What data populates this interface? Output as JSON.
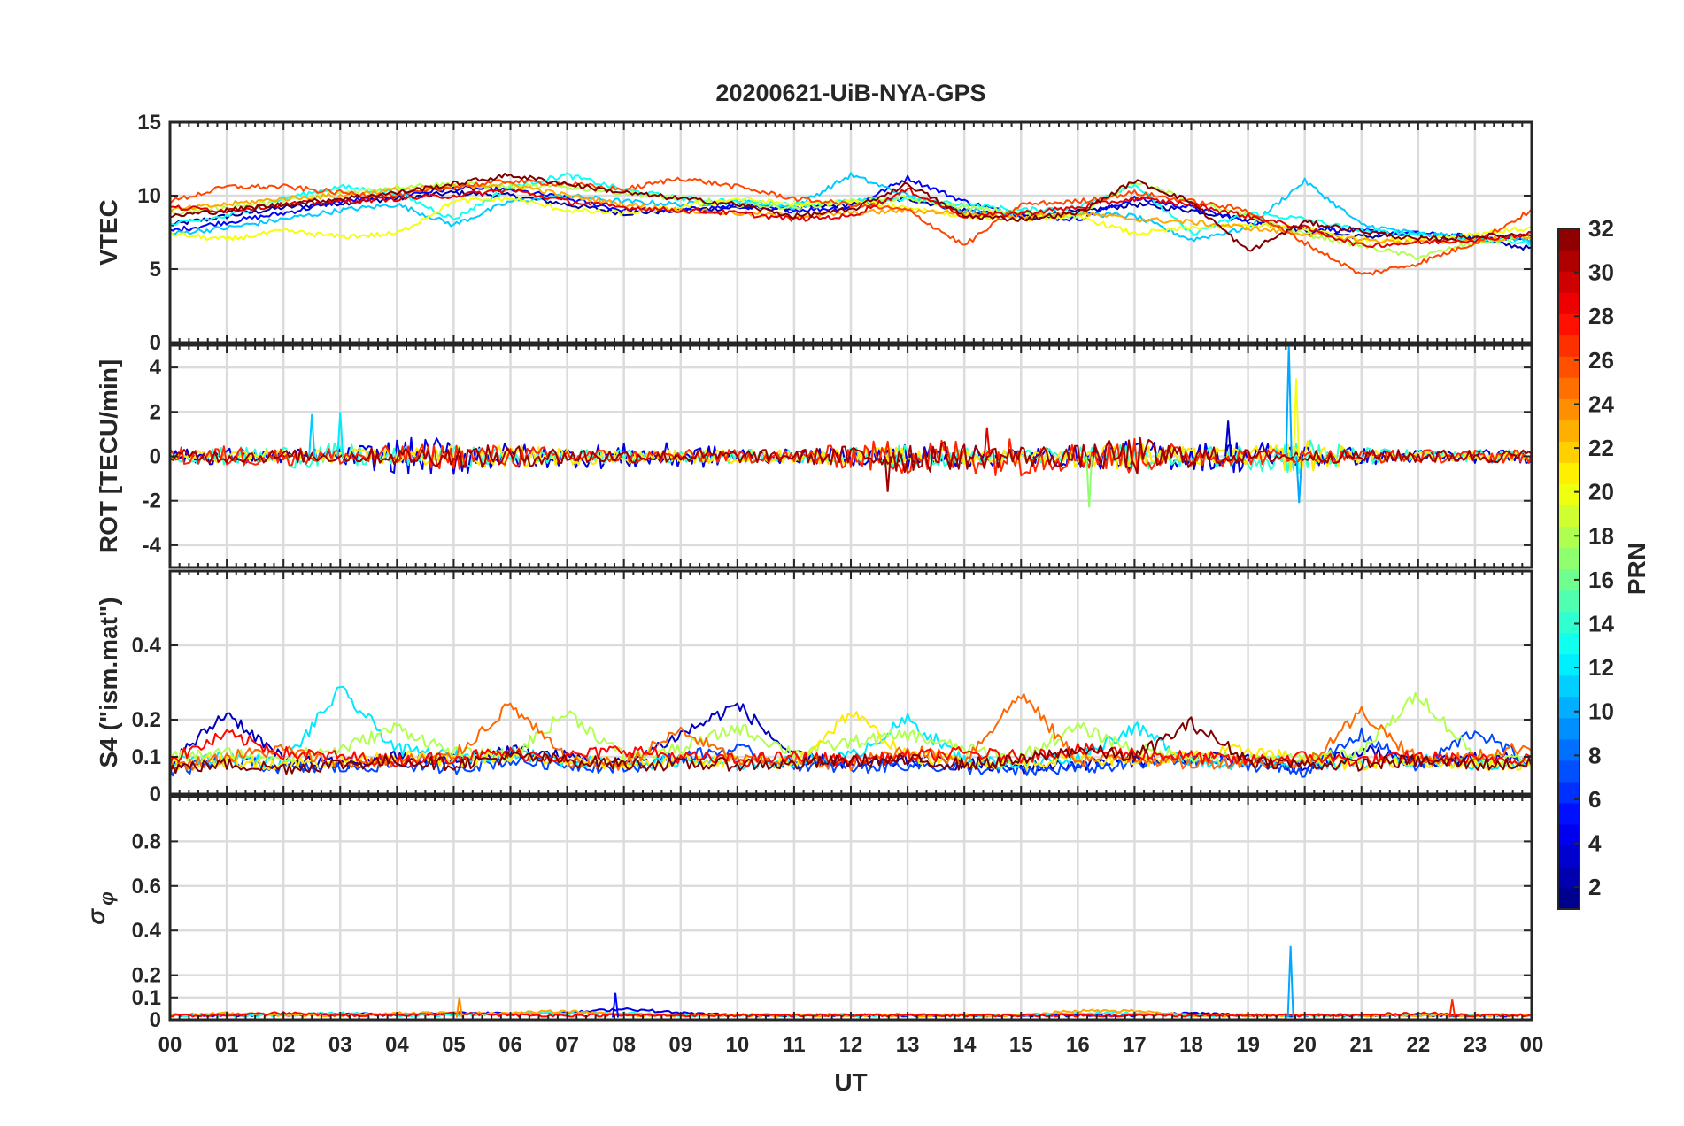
{
  "figure": {
    "title": "20200621-UiB-NYA-GPS"
  },
  "x_axis": {
    "label": "UT",
    "tick_labels": [
      "00",
      "01",
      "02",
      "03",
      "04",
      "05",
      "06",
      "07",
      "08",
      "09",
      "10",
      "11",
      "12",
      "13",
      "14",
      "15",
      "16",
      "17",
      "18",
      "19",
      "20",
      "21",
      "22",
      "23",
      "00"
    ],
    "range_hours": [
      0,
      24
    ]
  },
  "colorbar": {
    "label": "PRN",
    "range": [
      1,
      32
    ],
    "tick_labels": [
      "2",
      "4",
      "6",
      "8",
      "10",
      "12",
      "14",
      "16",
      "18",
      "20",
      "22",
      "24",
      "26",
      "28",
      "30",
      "32"
    ],
    "colormap": "jet",
    "levels": 32
  },
  "chart_data": [
    {
      "type": "line",
      "panel": "vtec",
      "ylabel": "VTEC",
      "ylim": [
        0,
        15
      ],
      "yticks": [
        0,
        5,
        10,
        15
      ],
      "ytick_labels": [
        "0",
        "5",
        "10",
        "15"
      ],
      "grid": true,
      "x": [
        0,
        1,
        2,
        3,
        4,
        5,
        6,
        7,
        8,
        9,
        10,
        11,
        12,
        13,
        14,
        15,
        16,
        17,
        18,
        19,
        20,
        21,
        22,
        23,
        24
      ],
      "series": [
        {
          "name": "PRN 2",
          "prn": 2,
          "values": [
            8.0,
            8.6,
            9.2,
            9.5,
            9.8,
            10.2,
            10.0,
            9.4,
            8.8,
            9.0,
            9.2,
            9.1,
            9.4,
            9.8,
            9.0,
            8.6,
            8.9,
            9.4,
            9.0,
            8.4,
            7.6,
            7.2,
            7.4,
            7.0,
            6.4
          ]
        },
        {
          "name": "PRN 5",
          "prn": 5,
          "values": [
            7.6,
            8.2,
            8.8,
            9.6,
            10.0,
            10.5,
            10.4,
            9.8,
            9.0,
            9.0,
            9.3,
            9.0,
            9.2,
            11.2,
            9.6,
            8.6,
            8.4,
            9.8,
            9.2,
            8.2,
            7.8,
            7.6,
            7.4,
            7.2,
            7.0
          ]
        },
        {
          "name": "PRN 11",
          "prn": 11,
          "values": [
            7.4,
            7.8,
            8.4,
            9.0,
            9.4,
            8.0,
            9.6,
            10.0,
            9.6,
            9.4,
            9.6,
            9.2,
            11.4,
            10.0,
            9.0,
            8.8,
            8.8,
            8.6,
            7.0,
            7.8,
            11.0,
            8.0,
            7.4,
            7.2,
            7.0
          ]
        },
        {
          "name": "PRN 13",
          "prn": 13,
          "values": [
            8.0,
            8.6,
            9.8,
            10.6,
            10.2,
            8.4,
            10.6,
            11.4,
            10.4,
            9.8,
            9.6,
            9.4,
            9.6,
            9.8,
            9.4,
            9.0,
            9.2,
            10.8,
            7.4,
            8.8,
            8.4,
            7.6,
            7.4,
            7.0,
            6.8
          ]
        },
        {
          "name": "PRN 18",
          "prn": 18,
          "values": [
            8.8,
            9.2,
            9.6,
            10.2,
            10.6,
            10.8,
            10.6,
            10.6,
            10.2,
            9.8,
            9.4,
            9.2,
            9.6,
            9.8,
            9.2,
            8.8,
            8.6,
            11.0,
            9.6,
            8.6,
            7.4,
            6.6,
            5.8,
            6.8,
            7.2
          ]
        },
        {
          "name": "PRN 20",
          "prn": 20,
          "values": [
            7.4,
            7.0,
            7.6,
            7.2,
            7.4,
            9.6,
            9.8,
            9.0,
            8.8,
            9.2,
            9.8,
            9.4,
            9.6,
            9.2,
            8.6,
            8.4,
            8.6,
            7.4,
            7.8,
            8.0,
            7.8,
            7.0,
            7.0,
            7.4,
            7.8
          ]
        },
        {
          "name": "PRN 23",
          "prn": 23,
          "values": [
            9.0,
            9.4,
            9.8,
            10.0,
            10.4,
            10.6,
            10.8,
            10.0,
            9.4,
            9.0,
            8.8,
            8.6,
            8.8,
            9.0,
            8.8,
            8.6,
            8.8,
            8.4,
            8.2,
            7.8,
            7.4,
            7.0,
            6.8,
            7.0,
            7.2
          ]
        },
        {
          "name": "PRN 26",
          "prn": 26,
          "values": [
            9.6,
            10.6,
            10.6,
            10.2,
            10.0,
            10.6,
            11.0,
            10.8,
            10.4,
            11.2,
            10.6,
            9.8,
            9.4,
            9.0,
            6.6,
            9.4,
            9.6,
            10.2,
            9.6,
            9.0,
            6.8,
            4.6,
            5.4,
            6.8,
            9.0
          ]
        },
        {
          "name": "PRN 29",
          "prn": 29,
          "values": [
            9.2,
            9.0,
            9.4,
            9.6,
            9.8,
            10.0,
            10.4,
            9.6,
            9.2,
            9.0,
            8.8,
            8.4,
            8.6,
            10.4,
            8.6,
            8.8,
            9.2,
            9.8,
            9.4,
            8.6,
            7.8,
            6.6,
            6.8,
            7.0,
            7.4
          ]
        },
        {
          "name": "PRN 32",
          "prn": 32,
          "values": [
            8.6,
            9.0,
            9.4,
            9.8,
            10.2,
            10.8,
            11.4,
            10.8,
            10.2,
            9.8,
            9.4,
            8.6,
            9.0,
            10.8,
            8.6,
            8.4,
            8.8,
            11.0,
            9.6,
            6.2,
            8.2,
            7.6,
            7.0,
            7.2,
            7.4
          ]
        }
      ]
    },
    {
      "type": "line",
      "panel": "rot",
      "ylabel": "ROT [TECU/min]",
      "ylim": [
        -5,
        5
      ],
      "yticks": [
        -4,
        -2,
        0,
        2,
        4
      ],
      "ytick_labels": [
        "-4",
        "-2",
        "0",
        "2",
        "4"
      ],
      "grid": true,
      "x": [
        0,
        1,
        2,
        3,
        4,
        5,
        6,
        7,
        8,
        9,
        10,
        11,
        12,
        13,
        14,
        15,
        16,
        17,
        18,
        19,
        20,
        21,
        22,
        23,
        24
      ],
      "spikes": [
        {
          "name": "PRN 10 spike",
          "prn": 10,
          "x": 19.72,
          "y": 5.0
        },
        {
          "name": "PRN 10 dip",
          "prn": 10,
          "x": 19.9,
          "y": -2.1
        },
        {
          "name": "PRN 20 spike",
          "prn": 20,
          "x": 19.85,
          "y": 3.5
        },
        {
          "name": "PRN 12 spike",
          "prn": 12,
          "x": 3.0,
          "y": 2.0
        },
        {
          "name": "PRN 11 spike",
          "prn": 11,
          "x": 2.5,
          "y": 1.9
        },
        {
          "name": "PRN 3 spike",
          "prn": 3,
          "x": 18.65,
          "y": 1.6
        },
        {
          "name": "PRN 17 dip",
          "prn": 17,
          "x": 16.2,
          "y": -2.3
        },
        {
          "name": "PRN 31 dip",
          "prn": 31,
          "x": 12.65,
          "y": -1.6
        },
        {
          "name": "PRN 29 spike",
          "prn": 29,
          "x": 14.4,
          "y": 1.3
        }
      ],
      "series": [
        {
          "name": "PRN 4 ROT",
          "prn": 4,
          "amplitudes": [
            0.3,
            0.4,
            0.3,
            0.4,
            0.8,
            0.9,
            0.6,
            0.5,
            0.6,
            0.6,
            0.4,
            0.3,
            0.4,
            0.6,
            0.5,
            0.4,
            0.5,
            0.7,
            0.6,
            0.8,
            0.5,
            0.4,
            0.3,
            0.3,
            0.3
          ]
        },
        {
          "name": "PRN 14 ROT",
          "prn": 14,
          "amplitudes": [
            0.3,
            0.4,
            0.5,
            0.6,
            0.4,
            0.5,
            0.4,
            0.3,
            0.3,
            0.3,
            0.3,
            0.3,
            0.4,
            0.5,
            0.4,
            0.3,
            0.4,
            0.6,
            0.4,
            0.6,
            0.9,
            0.4,
            0.3,
            0.3,
            0.3
          ]
        },
        {
          "name": "PRN 21 ROT",
          "prn": 21,
          "amplitudes": [
            0.2,
            0.3,
            0.3,
            0.3,
            0.4,
            0.5,
            0.5,
            0.4,
            0.3,
            0.3,
            0.3,
            0.3,
            0.4,
            0.4,
            0.4,
            0.3,
            0.5,
            0.6,
            0.4,
            0.4,
            0.8,
            0.3,
            0.2,
            0.2,
            0.2
          ]
        },
        {
          "name": "PRN 27 ROT",
          "prn": 27,
          "amplitudes": [
            0.4,
            0.5,
            0.4,
            0.4,
            0.5,
            0.6,
            0.5,
            0.4,
            0.3,
            0.3,
            0.3,
            0.3,
            0.6,
            0.9,
            0.8,
            0.9,
            0.6,
            0.8,
            0.5,
            0.4,
            0.3,
            0.3,
            0.3,
            0.3,
            0.3
          ]
        },
        {
          "name": "PRN 31 ROT",
          "prn": 31,
          "amplitudes": [
            0.3,
            0.3,
            0.3,
            0.3,
            0.4,
            0.5,
            0.5,
            0.4,
            0.3,
            0.3,
            0.3,
            0.3,
            0.5,
            0.8,
            0.6,
            0.5,
            0.5,
            0.9,
            0.5,
            0.3,
            0.3,
            0.3,
            0.3,
            0.3,
            0.3
          ]
        }
      ]
    },
    {
      "type": "line",
      "panel": "s4",
      "ylabel": "S4 (\"ism.mat\")",
      "ylim": [
        0,
        0.6
      ],
      "yticks": [
        0,
        0.1,
        0.2,
        0.4
      ],
      "ytick_labels": [
        "0",
        "0.1",
        "0.2",
        "0.4"
      ],
      "grid": true,
      "x": [
        0,
        1,
        2,
        3,
        4,
        5,
        6,
        7,
        8,
        9,
        10,
        11,
        12,
        13,
        14,
        15,
        16,
        17,
        18,
        19,
        20,
        21,
        22,
        23,
        24
      ],
      "series": [
        {
          "name": "PRN 3 S4",
          "prn": 3,
          "values": [
            0.08,
            0.22,
            0.09,
            0.08,
            0.1,
            0.09,
            0.12,
            0.1,
            0.08,
            0.16,
            0.24,
            0.1,
            0.08,
            0.09,
            0.08,
            0.07,
            0.08,
            0.09,
            0.1,
            0.09,
            0.07,
            0.12,
            0.08,
            0.1,
            0.09
          ]
        },
        {
          "name": "PRN 7 S4",
          "prn": 7,
          "values": [
            0.06,
            0.09,
            0.07,
            0.07,
            0.08,
            0.07,
            0.09,
            0.08,
            0.07,
            0.1,
            0.12,
            0.08,
            0.07,
            0.08,
            0.07,
            0.06,
            0.07,
            0.08,
            0.09,
            0.08,
            0.06,
            0.16,
            0.07,
            0.17,
            0.08
          ]
        },
        {
          "name": "PRN 12 S4",
          "prn": 12,
          "values": [
            0.09,
            0.1,
            0.08,
            0.28,
            0.12,
            0.1,
            0.11,
            0.09,
            0.08,
            0.09,
            0.08,
            0.09,
            0.1,
            0.2,
            0.09,
            0.08,
            0.1,
            0.18,
            0.09,
            0.08,
            0.09,
            0.08,
            0.09,
            0.08,
            0.08
          ]
        },
        {
          "name": "PRN 18 S4",
          "prn": 18,
          "values": [
            0.1,
            0.11,
            0.1,
            0.12,
            0.18,
            0.11,
            0.1,
            0.22,
            0.1,
            0.12,
            0.18,
            0.11,
            0.14,
            0.16,
            0.12,
            0.1,
            0.18,
            0.12,
            0.1,
            0.09,
            0.1,
            0.11,
            0.27,
            0.1,
            0.09
          ]
        },
        {
          "name": "PRN 21 S4",
          "prn": 21,
          "values": [
            0.08,
            0.09,
            0.08,
            0.09,
            0.1,
            0.09,
            0.1,
            0.09,
            0.08,
            0.09,
            0.09,
            0.08,
            0.22,
            0.1,
            0.09,
            0.08,
            0.1,
            0.09,
            0.1,
            0.12,
            0.09,
            0.08,
            0.09,
            0.08,
            0.08
          ]
        },
        {
          "name": "PRN 25 S4",
          "prn": 25,
          "values": [
            0.07,
            0.1,
            0.12,
            0.08,
            0.09,
            0.1,
            0.24,
            0.09,
            0.08,
            0.17,
            0.09,
            0.09,
            0.08,
            0.12,
            0.09,
            0.27,
            0.09,
            0.1,
            0.08,
            0.09,
            0.08,
            0.22,
            0.09,
            0.1,
            0.13
          ]
        },
        {
          "name": "PRN 28 S4",
          "prn": 28,
          "values": [
            0.09,
            0.16,
            0.11,
            0.1,
            0.09,
            0.1,
            0.11,
            0.1,
            0.12,
            0.1,
            0.09,
            0.1,
            0.09,
            0.1,
            0.11,
            0.1,
            0.12,
            0.11,
            0.1,
            0.09,
            0.1,
            0.09,
            0.1,
            0.09,
            0.1
          ]
        },
        {
          "name": "PRN 32 S4",
          "prn": 32,
          "values": [
            0.07,
            0.08,
            0.07,
            0.08,
            0.09,
            0.08,
            0.1,
            0.09,
            0.08,
            0.08,
            0.08,
            0.08,
            0.09,
            0.09,
            0.08,
            0.09,
            0.12,
            0.1,
            0.19,
            0.09,
            0.08,
            0.08,
            0.09,
            0.08,
            0.08
          ]
        }
      ]
    },
    {
      "type": "line",
      "panel": "sigma_phi",
      "ylabel": "σ_φ",
      "ylabel_main": "σ",
      "ylabel_sub": "φ",
      "ylim": [
        0,
        1
      ],
      "yticks": [
        0,
        0.1,
        0.2,
        0.4,
        0.6,
        0.8
      ],
      "ytick_labels": [
        "0",
        "0.1",
        "0.2",
        "0.4",
        "0.6",
        "0.8"
      ],
      "grid": true,
      "x": [
        0,
        1,
        2,
        3,
        4,
        5,
        6,
        7,
        8,
        9,
        10,
        11,
        12,
        13,
        14,
        15,
        16,
        17,
        18,
        19,
        20,
        21,
        22,
        23,
        24
      ],
      "spikes": [
        {
          "name": "PRN 10 spike",
          "prn": 10,
          "x": 19.75,
          "y": 0.33
        },
        {
          "name": "PRN 5 spike",
          "prn": 5,
          "x": 7.85,
          "y": 0.12
        },
        {
          "name": "PRN 24 spike",
          "prn": 24,
          "x": 5.1,
          "y": 0.1
        },
        {
          "name": "PRN 27 spike",
          "prn": 27,
          "x": 22.6,
          "y": 0.09
        }
      ],
      "series": [
        {
          "name": "PRN 4 sigma",
          "prn": 4,
          "values": [
            0.02,
            0.02,
            0.02,
            0.03,
            0.02,
            0.03,
            0.03,
            0.03,
            0.05,
            0.03,
            0.02,
            0.02,
            0.02,
            0.02,
            0.02,
            0.02,
            0.02,
            0.02,
            0.03,
            0.02,
            0.02,
            0.02,
            0.02,
            0.02,
            0.02
          ]
        },
        {
          "name": "PRN 13 sigma",
          "prn": 13,
          "values": [
            0.02,
            0.02,
            0.02,
            0.03,
            0.02,
            0.02,
            0.03,
            0.03,
            0.03,
            0.02,
            0.02,
            0.02,
            0.02,
            0.02,
            0.02,
            0.02,
            0.03,
            0.03,
            0.02,
            0.02,
            0.02,
            0.02,
            0.02,
            0.02,
            0.02
          ]
        },
        {
          "name": "PRN 23 sigma",
          "prn": 23,
          "values": [
            0.02,
            0.03,
            0.02,
            0.02,
            0.03,
            0.03,
            0.03,
            0.04,
            0.02,
            0.02,
            0.02,
            0.02,
            0.02,
            0.02,
            0.02,
            0.02,
            0.04,
            0.04,
            0.02,
            0.02,
            0.02,
            0.02,
            0.02,
            0.02,
            0.02
          ]
        },
        {
          "name": "PRN 28 sigma",
          "prn": 28,
          "values": [
            0.02,
            0.02,
            0.03,
            0.02,
            0.02,
            0.03,
            0.02,
            0.02,
            0.02,
            0.02,
            0.02,
            0.02,
            0.02,
            0.02,
            0.02,
            0.02,
            0.02,
            0.02,
            0.02,
            0.02,
            0.02,
            0.02,
            0.03,
            0.02,
            0.02
          ]
        }
      ]
    }
  ]
}
